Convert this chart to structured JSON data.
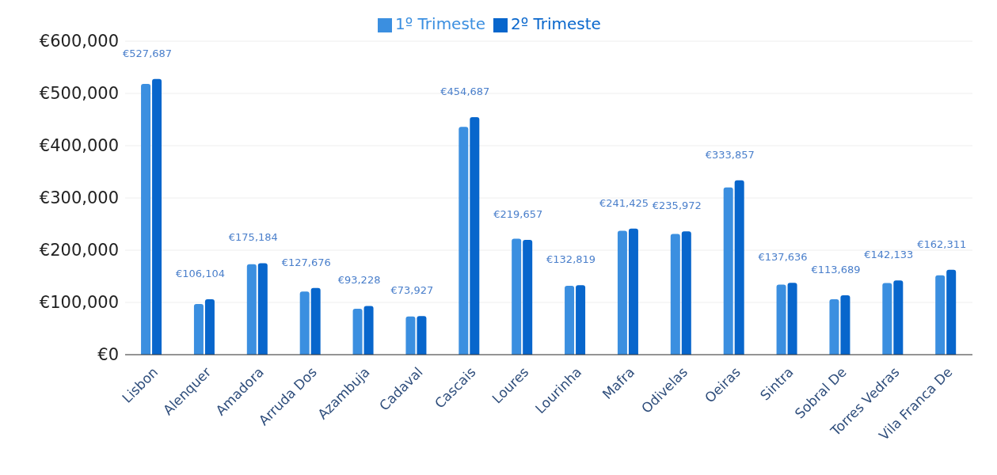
{
  "chart_data": {
    "type": "bar",
    "categories": [
      "Lisbon",
      "Alenquer",
      "Amadora",
      "Arruda Dos",
      "Azambuja",
      "Cadaval",
      "Cascais",
      "Loures",
      "Lourinha",
      "Mafra",
      "Odivelas",
      "Oeiras",
      "Sintra",
      "Sobral De",
      "Torres Vedras",
      "Vila Franca De"
    ],
    "series": [
      {
        "name": "1º Trimeste",
        "color": "#3b8fe0",
        "values": [
          518000,
          97000,
          173000,
          121000,
          88000,
          73000,
          436000,
          222000,
          132000,
          237000,
          231000,
          320000,
          134000,
          106000,
          137000,
          152000
        ]
      },
      {
        "name": "2º Trimeste",
        "color": "#0866cc",
        "values": [
          527687,
          106104,
          175184,
          127676,
          93228,
          73927,
          454687,
          219657,
          132819,
          241425,
          235972,
          333857,
          137636,
          113689,
          142133,
          162311
        ],
        "value_labels": [
          "€527,687",
          "€106,104",
          "€175,184",
          "€127,676",
          "€93,228",
          "€73,927",
          "€454,687",
          "€219,657",
          "€132,819",
          "€241,425",
          "€235,972",
          "€333,857",
          "€137,636",
          "€113,689",
          "€142,133",
          "€162,311"
        ]
      }
    ],
    "ylim": [
      0,
      600000
    ],
    "yticks": [
      {
        "value": 0,
        "label": "€0"
      },
      {
        "value": 100000,
        "label": "€100,000"
      },
      {
        "value": 200000,
        "label": "€200,000"
      },
      {
        "value": 300000,
        "label": "€300,000"
      },
      {
        "value": 400000,
        "label": "€400,000"
      },
      {
        "value": 500000,
        "label": "€500,000"
      },
      {
        "value": 600000,
        "label": "€600,000"
      }
    ],
    "grid": "y",
    "legend": "top"
  }
}
